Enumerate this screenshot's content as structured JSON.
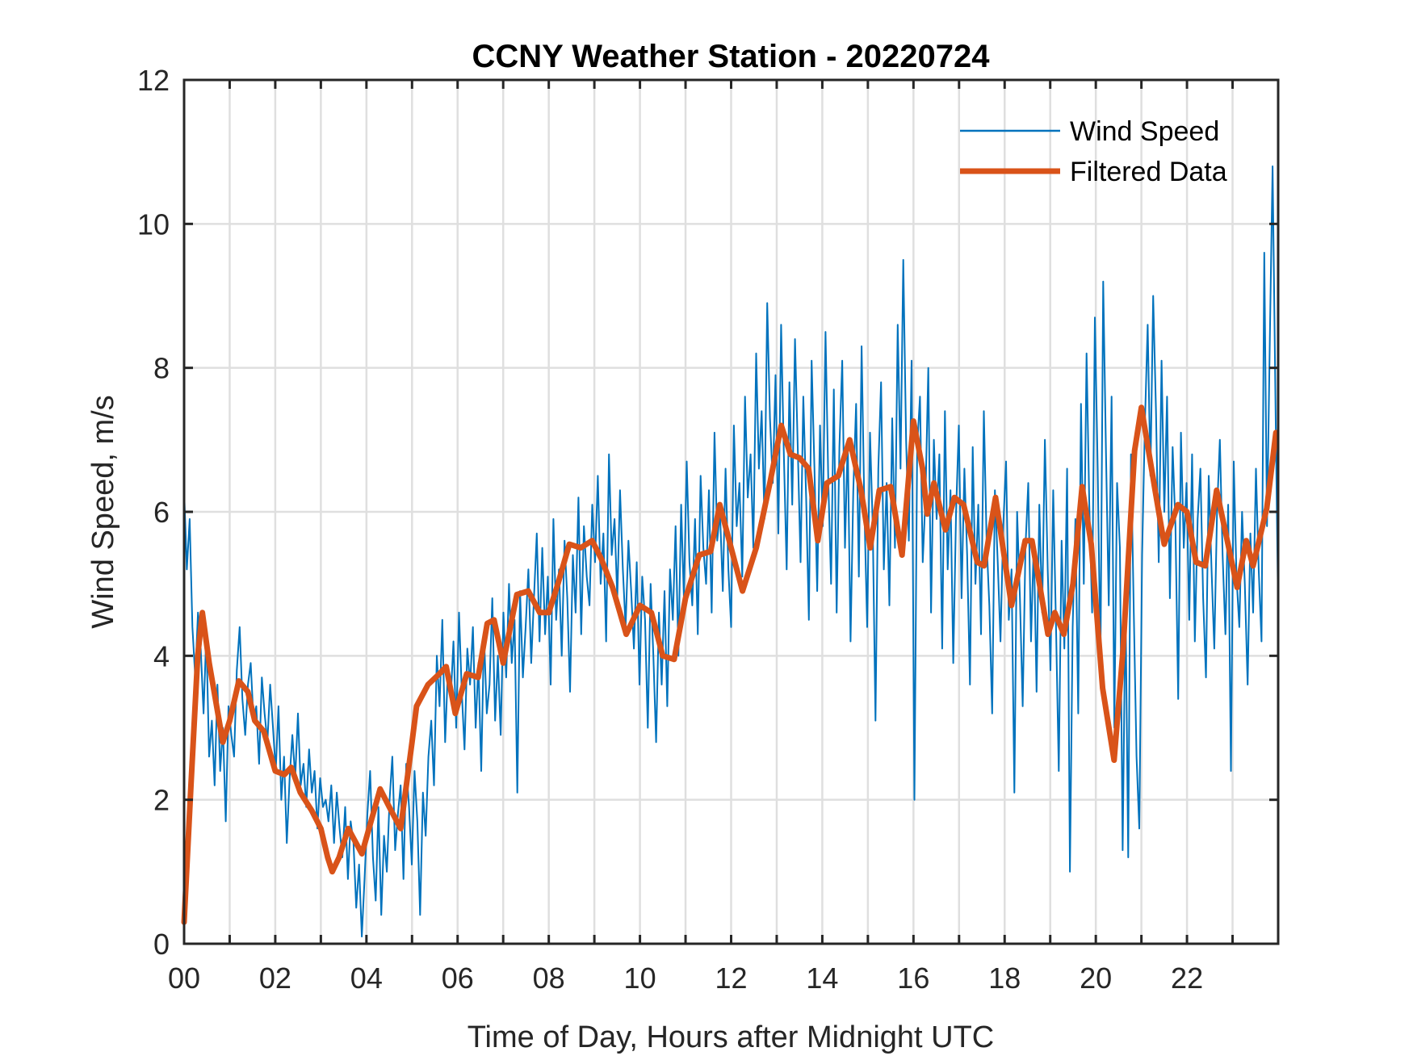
{
  "chart_data": {
    "type": "line",
    "title": "CCNY Weather Station - 20220724",
    "xlabel": "Time of Day, Hours after Midnight UTC",
    "ylabel": "Wind Speed, m/s",
    "xlim": [
      0,
      24
    ],
    "ylim": [
      0,
      12
    ],
    "grid": true,
    "legend_position": "top-right",
    "x_ticks": [
      0,
      2,
      4,
      6,
      8,
      10,
      12,
      14,
      16,
      18,
      20,
      22
    ],
    "x_tick_labels": [
      "00",
      "02",
      "04",
      "06",
      "08",
      "10",
      "12",
      "14",
      "16",
      "18",
      "20",
      "22"
    ],
    "x_minor_ticks": [
      1,
      3,
      5,
      7,
      9,
      11,
      13,
      15,
      17,
      19,
      21,
      23
    ],
    "y_ticks": [
      0,
      2,
      4,
      6,
      8,
      10,
      12
    ],
    "y_tick_labels": [
      "0",
      "2",
      "4",
      "6",
      "8",
      "10",
      "12"
    ],
    "series": [
      {
        "name": "Wind Speed",
        "color": "#0072BD",
        "style": "thin",
        "x_step": 0.05,
        "values": [
          6.3,
          5.2,
          5.9,
          4.4,
          3.7,
          4.6,
          4.1,
          3.2,
          4.3,
          2.6,
          3.1,
          2.2,
          3.6,
          2.4,
          3.0,
          1.7,
          3.3,
          2.9,
          2.6,
          3.8,
          4.4,
          3.4,
          2.9,
          3.6,
          3.9,
          3.1,
          3.3,
          2.5,
          3.7,
          3.2,
          2.8,
          3.6,
          3.0,
          2.4,
          3.3,
          2.0,
          2.6,
          1.4,
          2.3,
          2.9,
          2.3,
          3.2,
          2.2,
          2.5,
          1.9,
          2.7,
          2.1,
          2.4,
          1.6,
          2.3,
          1.9,
          2.0,
          1.7,
          2.2,
          1.4,
          2.1,
          1.6,
          1.2,
          1.9,
          0.9,
          1.7,
          1.4,
          0.5,
          1.1,
          0.1,
          0.9,
          1.8,
          2.4,
          1.2,
          0.6,
          1.9,
          0.4,
          1.5,
          1.0,
          2.0,
          2.6,
          1.3,
          1.8,
          2.2,
          0.9,
          2.5,
          1.9,
          1.1,
          2.4,
          1.7,
          0.4,
          2.1,
          1.5,
          2.6,
          3.1,
          2.2,
          4.0,
          3.3,
          4.5,
          2.8,
          3.8,
          3.4,
          4.2,
          3.0,
          4.6,
          3.5,
          2.7,
          4.1,
          3.6,
          4.4,
          3.0,
          3.9,
          2.4,
          4.3,
          3.2,
          3.6,
          4.8,
          3.1,
          4.0,
          2.9,
          4.6,
          3.7,
          5.0,
          3.9,
          4.5,
          2.1,
          4.9,
          3.7,
          4.4,
          5.2,
          3.9,
          4.8,
          5.7,
          4.2,
          5.5,
          4.3,
          5.1,
          3.6,
          5.9,
          4.5,
          5.2,
          4.0,
          5.6,
          4.8,
          3.5,
          5.4,
          4.6,
          6.2,
          4.3,
          5.8,
          5.1,
          4.7,
          6.1,
          5.3,
          6.5,
          5.0,
          5.7,
          4.2,
          6.8,
          5.4,
          5.9,
          4.8,
          6.3,
          5.2,
          4.4,
          5.6,
          4.9,
          4.1,
          5.3,
          3.6,
          5.1,
          4.5,
          3.0,
          5.0,
          4.0,
          2.8,
          4.6,
          3.6,
          4.9,
          3.3,
          5.2,
          4.5,
          5.8,
          4.0,
          6.1,
          4.8,
          6.7,
          5.3,
          4.7,
          5.9,
          4.3,
          6.5,
          5.5,
          5.0,
          6.3,
          4.6,
          7.1,
          5.6,
          6.0,
          4.9,
          6.6,
          5.2,
          4.4,
          7.2,
          5.8,
          6.4,
          5.1,
          7.6,
          6.2,
          6.8,
          5.5,
          8.2,
          6.6,
          7.4,
          5.9,
          8.9,
          7.3,
          6.4,
          7.9,
          5.7,
          8.6,
          6.8,
          5.2,
          7.8,
          6.1,
          8.4,
          6.9,
          5.3,
          7.6,
          6.2,
          4.5,
          8.1,
          6.6,
          4.9,
          7.2,
          5.8,
          8.5,
          6.4,
          5.0,
          7.7,
          4.6,
          6.9,
          8.1,
          5.5,
          7.0,
          4.2,
          6.3,
          7.5,
          5.1,
          8.3,
          6.0,
          4.4,
          7.1,
          5.8,
          3.1,
          6.6,
          7.8,
          5.2,
          6.4,
          4.7,
          7.3,
          5.5,
          8.6,
          6.6,
          9.5,
          7.0,
          5.6,
          8.1,
          2.0,
          6.9,
          7.6,
          5.3,
          6.2,
          8.0,
          4.6,
          7.0,
          5.9,
          6.8,
          4.1,
          7.4,
          5.2,
          6.3,
          3.9,
          6.0,
          7.2,
          4.8,
          6.6,
          5.4,
          3.6,
          6.9,
          5.0,
          6.1,
          4.3,
          7.4,
          5.6,
          4.7,
          3.2,
          6.3,
          5.3,
          4.2,
          5.8,
          6.7,
          4.5,
          5.2,
          2.1,
          6.0,
          4.8,
          3.3,
          5.5,
          6.4,
          4.2,
          5.6,
          3.5,
          6.1,
          4.6,
          7.0,
          5.2,
          3.8,
          6.3,
          4.4,
          2.4,
          5.6,
          4.1,
          6.6,
          1.0,
          4.4,
          5.9,
          3.2,
          7.5,
          5.0,
          8.2,
          6.1,
          4.6,
          8.7,
          6.6,
          3.9,
          9.2,
          6.8,
          4.7,
          7.6,
          3.0,
          6.4,
          5.5,
          1.3,
          4.8,
          1.2,
          6.8,
          4.6,
          2.6,
          1.6,
          5.4,
          7.2,
          8.6,
          6.5,
          9.0,
          7.4,
          5.3,
          8.1,
          6.0,
          7.6,
          4.8,
          6.9,
          5.8,
          3.4,
          7.1,
          5.5,
          6.4,
          4.5,
          6.8,
          4.2,
          5.9,
          6.6,
          4.8,
          3.7,
          6.5,
          5.2,
          4.1,
          6.0,
          7.0,
          5.4,
          4.3,
          6.1,
          2.4,
          6.7,
          5.1,
          4.4,
          6.0,
          5.0,
          3.6,
          5.7,
          4.6,
          6.6,
          5.2,
          4.2,
          9.6,
          5.8,
          8.4,
          10.8,
          7.6,
          4.6
        ],
        "note": "raw sampled series, values in m/s"
      },
      {
        "name": "Filtered Data",
        "color": "#D95319",
        "style": "thick",
        "points": [
          [
            0.0,
            0.3
          ],
          [
            0.15,
            2.2
          ],
          [
            0.3,
            4.0
          ],
          [
            0.4,
            4.6
          ],
          [
            0.55,
            3.9
          ],
          [
            0.85,
            2.8
          ],
          [
            1.0,
            3.1
          ],
          [
            1.2,
            3.65
          ],
          [
            1.4,
            3.5
          ],
          [
            1.55,
            3.1
          ],
          [
            1.75,
            2.95
          ],
          [
            2.0,
            2.4
          ],
          [
            2.2,
            2.35
          ],
          [
            2.35,
            2.45
          ],
          [
            2.55,
            2.1
          ],
          [
            2.8,
            1.85
          ],
          [
            3.0,
            1.6
          ],
          [
            3.15,
            1.2
          ],
          [
            3.25,
            1.0
          ],
          [
            3.4,
            1.2
          ],
          [
            3.6,
            1.6
          ],
          [
            3.9,
            1.25
          ],
          [
            4.1,
            1.7
          ],
          [
            4.3,
            2.15
          ],
          [
            4.5,
            1.9
          ],
          [
            4.75,
            1.6
          ],
          [
            5.0,
            2.8
          ],
          [
            5.1,
            3.3
          ],
          [
            5.35,
            3.6
          ],
          [
            5.6,
            3.75
          ],
          [
            5.75,
            3.85
          ],
          [
            5.95,
            3.2
          ],
          [
            6.2,
            3.75
          ],
          [
            6.45,
            3.7
          ],
          [
            6.65,
            4.45
          ],
          [
            6.8,
            4.5
          ],
          [
            7.0,
            3.9
          ],
          [
            7.3,
            4.85
          ],
          [
            7.55,
            4.9
          ],
          [
            7.8,
            4.6
          ],
          [
            8.0,
            4.6
          ],
          [
            8.2,
            5.0
          ],
          [
            8.45,
            5.55
          ],
          [
            8.7,
            5.5
          ],
          [
            8.95,
            5.6
          ],
          [
            9.15,
            5.35
          ],
          [
            9.4,
            4.95
          ],
          [
            9.7,
            4.3
          ],
          [
            10.0,
            4.7
          ],
          [
            10.25,
            4.6
          ],
          [
            10.5,
            4.0
          ],
          [
            10.75,
            3.95
          ],
          [
            11.0,
            4.8
          ],
          [
            11.3,
            5.4
          ],
          [
            11.55,
            5.45
          ],
          [
            11.75,
            6.1
          ],
          [
            12.0,
            5.5
          ],
          [
            12.25,
            4.9
          ],
          [
            12.55,
            5.5
          ],
          [
            12.85,
            6.4
          ],
          [
            13.1,
            7.2
          ],
          [
            13.3,
            6.8
          ],
          [
            13.5,
            6.75
          ],
          [
            13.7,
            6.6
          ],
          [
            13.9,
            5.6
          ],
          [
            14.1,
            6.4
          ],
          [
            14.35,
            6.5
          ],
          [
            14.6,
            7.0
          ],
          [
            14.85,
            6.3
          ],
          [
            15.05,
            5.5
          ],
          [
            15.25,
            6.3
          ],
          [
            15.5,
            6.35
          ],
          [
            15.75,
            5.4
          ],
          [
            16.0,
            7.26
          ],
          [
            16.2,
            6.6
          ],
          [
            16.3,
            5.97
          ],
          [
            16.45,
            6.4
          ],
          [
            16.7,
            5.75
          ],
          [
            16.9,
            6.2
          ],
          [
            17.1,
            6.1
          ],
          [
            17.4,
            5.3
          ],
          [
            17.55,
            5.25
          ],
          [
            17.8,
            6.2
          ],
          [
            18.15,
            4.7
          ],
          [
            18.45,
            5.6
          ],
          [
            18.6,
            5.6
          ],
          [
            18.75,
            5.05
          ],
          [
            18.95,
            4.3
          ],
          [
            19.1,
            4.6
          ],
          [
            19.3,
            4.3
          ],
          [
            19.5,
            5.0
          ],
          [
            19.7,
            6.35
          ],
          [
            19.9,
            5.55
          ],
          [
            20.15,
            3.55
          ],
          [
            20.4,
            2.55
          ],
          [
            20.6,
            4.1
          ],
          [
            20.85,
            6.85
          ],
          [
            21.0,
            7.45
          ],
          [
            21.3,
            6.3
          ],
          [
            21.5,
            5.55
          ],
          [
            21.8,
            6.1
          ],
          [
            22.0,
            6.0
          ],
          [
            22.2,
            5.3
          ],
          [
            22.4,
            5.25
          ],
          [
            22.65,
            6.3
          ],
          [
            22.85,
            5.7
          ],
          [
            23.1,
            4.95
          ],
          [
            23.3,
            5.6
          ],
          [
            23.45,
            5.25
          ],
          [
            23.75,
            6.05
          ],
          [
            23.95,
            7.1
          ]
        ]
      }
    ]
  }
}
